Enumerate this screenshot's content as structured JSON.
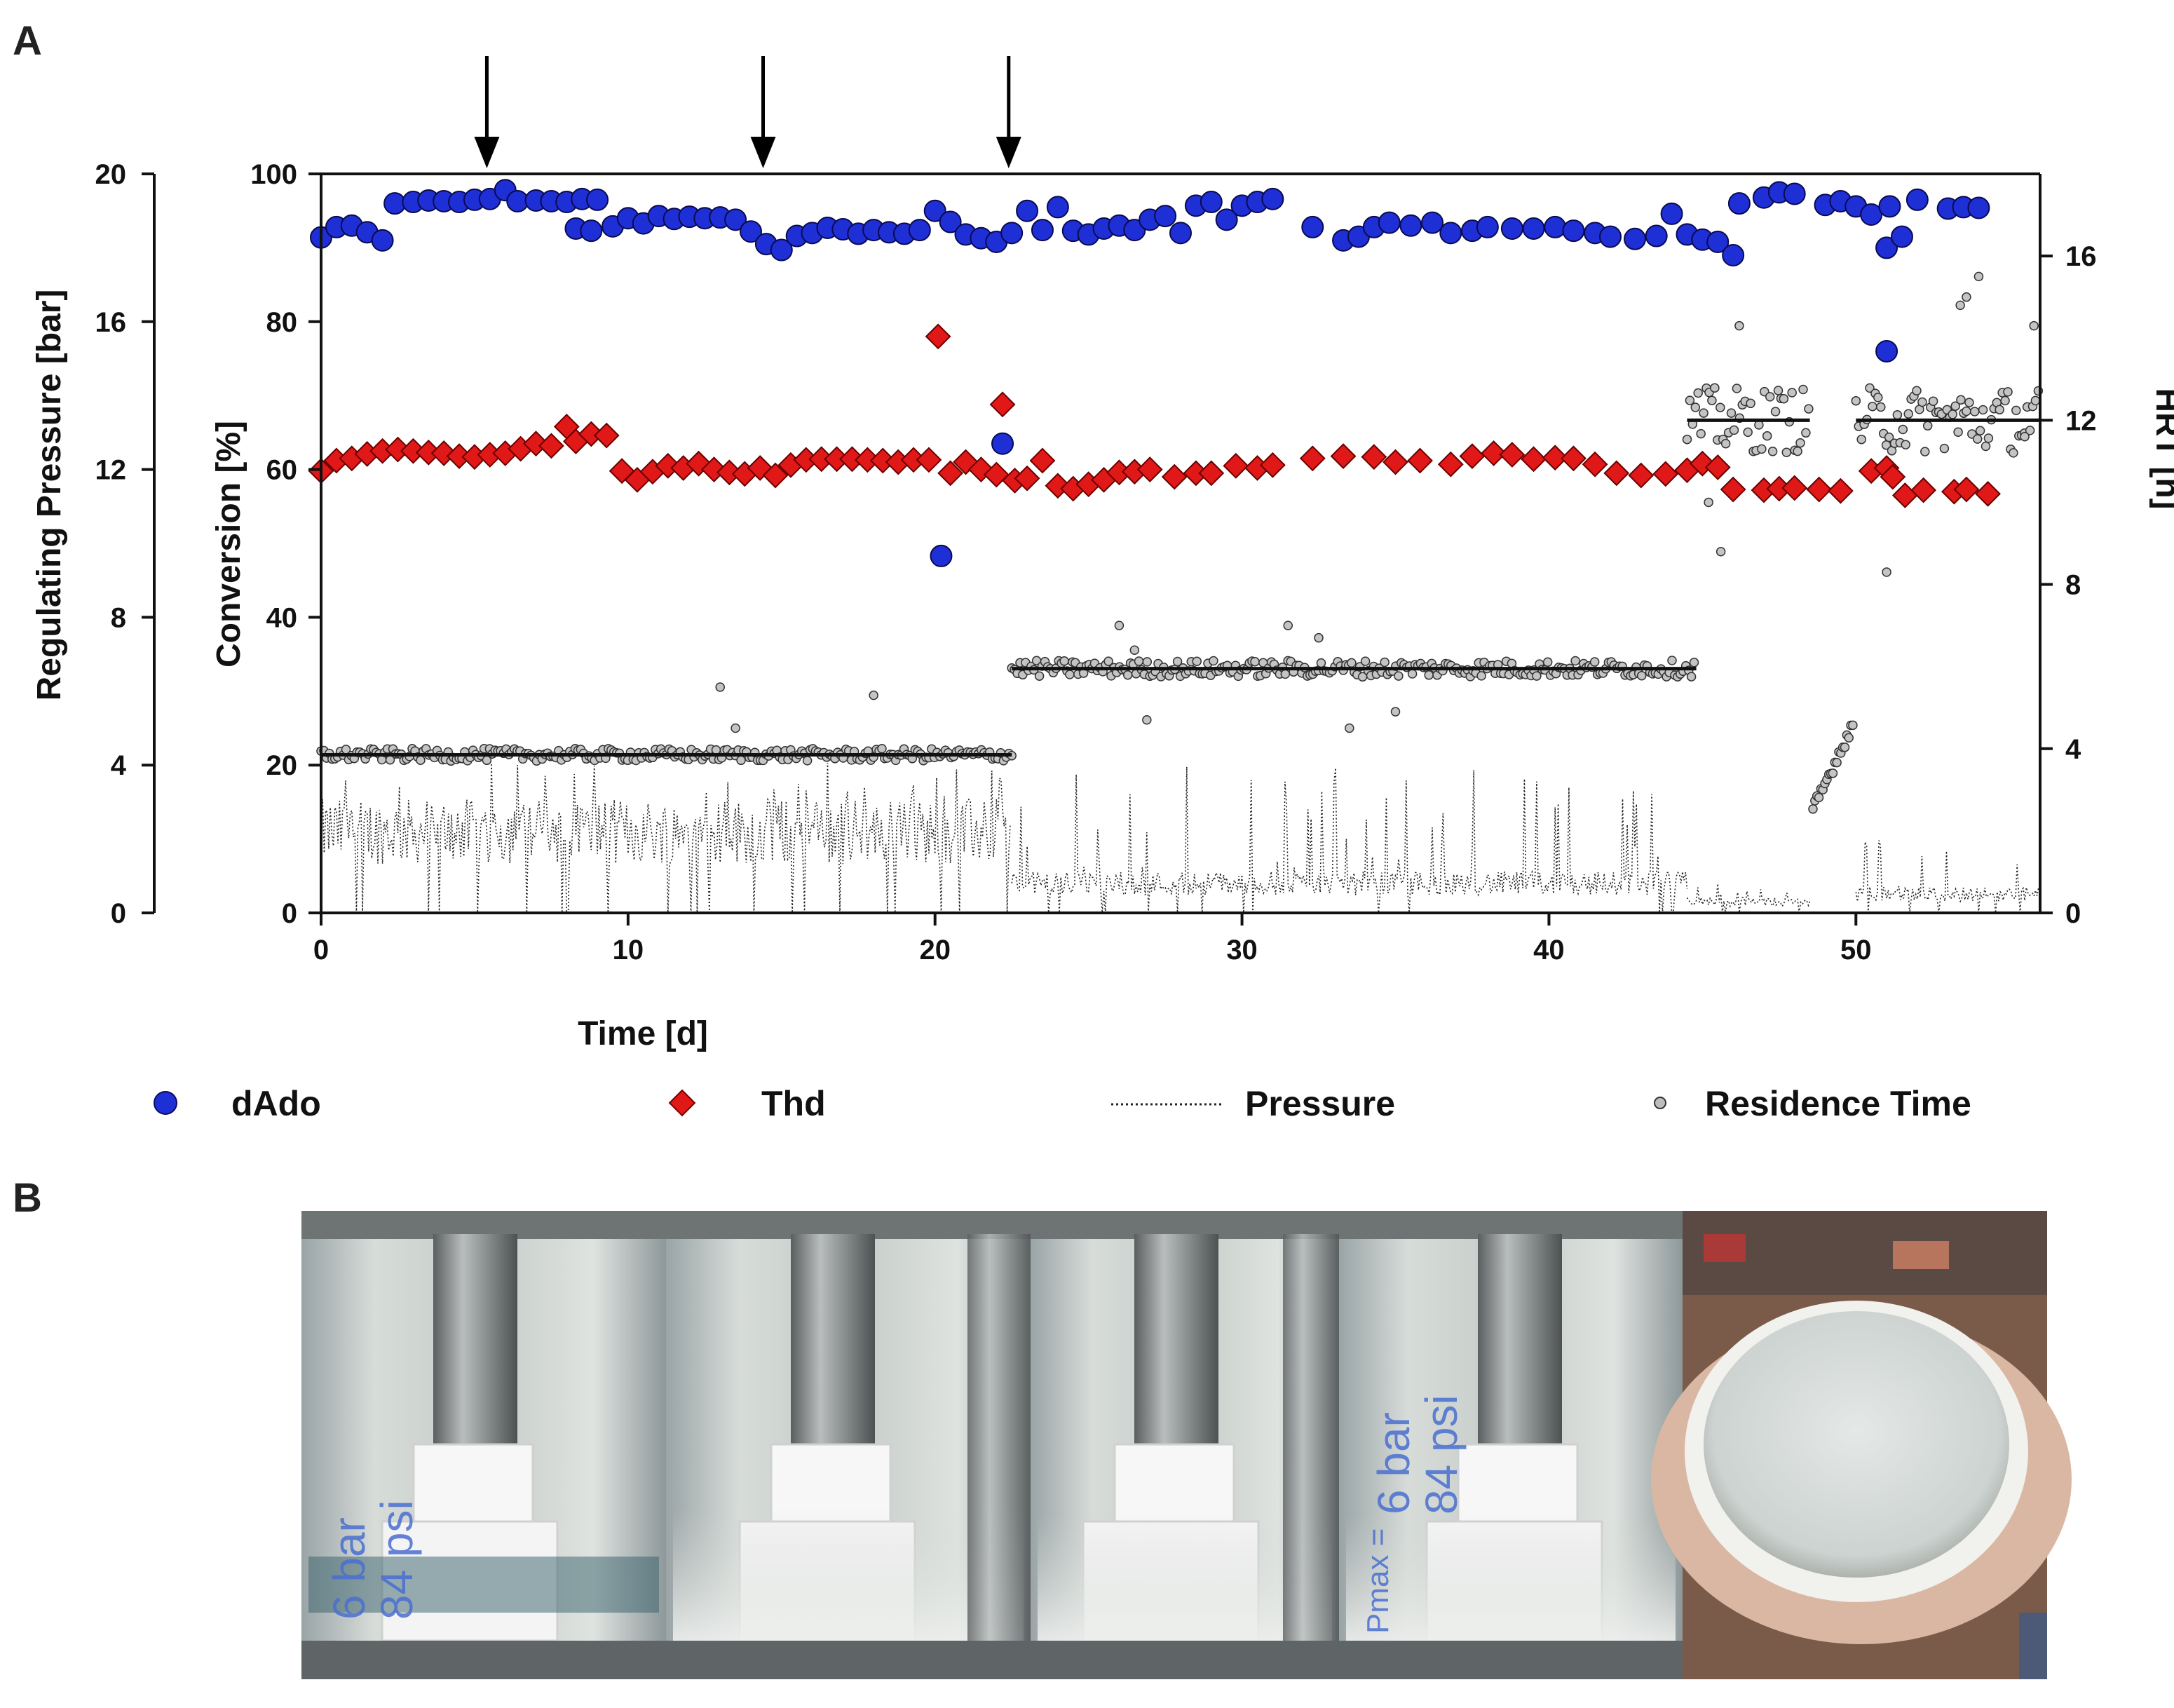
{
  "panels": {
    "a": "A",
    "b": "B"
  },
  "chart_data": {
    "type": "scatter",
    "xlabel": "Time [d]",
    "ylabel_left_outer": "Regulating Pressure [bar]",
    "ylabel_left_inner": "Conversion [%]",
    "ylabel_right": "HRT [h]",
    "xlim": [
      0,
      56
    ],
    "ylim_conversion": [
      0,
      100
    ],
    "ylim_pressure": [
      0,
      20
    ],
    "ylim_hrt": [
      0,
      18
    ],
    "x_ticks": [
      "0",
      "10",
      "20",
      "30",
      "40",
      "50"
    ],
    "conversion_ticks": [
      "0",
      "20",
      "40",
      "60",
      "80",
      "100"
    ],
    "pressure_ticks": [
      "0",
      "4",
      "8",
      "12",
      "16",
      "20"
    ],
    "hrt_ticks": [
      "0",
      "4",
      "8",
      "12",
      "16"
    ],
    "arrows_at_day": [
      5.4,
      14.4,
      22.4
    ],
    "legend": [
      "dAdo",
      "Thd",
      "Pressure",
      "Residence Time"
    ],
    "colors": {
      "dAdo": "#1f2fd6",
      "Thd": "#e01818",
      "pressure": "#222222",
      "residence": "#bdbdbd"
    },
    "series": [
      {
        "name": "dAdo",
        "marker": "circle",
        "points": [
          [
            0.0,
            91.4
          ],
          [
            0.5,
            92.8
          ],
          [
            1.0,
            93.0
          ],
          [
            1.5,
            92.1
          ],
          [
            2.0,
            91.0
          ],
          [
            2.4,
            96.0
          ],
          [
            3.0,
            96.2
          ],
          [
            3.5,
            96.4
          ],
          [
            4.0,
            96.3
          ],
          [
            4.5,
            96.2
          ],
          [
            5.0,
            96.5
          ],
          [
            5.5,
            96.6
          ],
          [
            6.0,
            97.8
          ],
          [
            6.4,
            96.3
          ],
          [
            7.0,
            96.4
          ],
          [
            7.5,
            96.3
          ],
          [
            8.0,
            96.2
          ],
          [
            8.5,
            96.6
          ],
          [
            9.0,
            96.5
          ],
          [
            8.3,
            92.6
          ],
          [
            8.8,
            92.3
          ],
          [
            9.5,
            92.9
          ],
          [
            10.0,
            94.0
          ],
          [
            10.5,
            93.3
          ],
          [
            11.0,
            94.3
          ],
          [
            11.5,
            93.9
          ],
          [
            12.0,
            94.2
          ],
          [
            12.5,
            94.0
          ],
          [
            13.0,
            94.1
          ],
          [
            13.5,
            93.8
          ],
          [
            14.0,
            92.2
          ],
          [
            14.5,
            90.5
          ],
          [
            15.0,
            89.7
          ],
          [
            15.5,
            91.6
          ],
          [
            16.0,
            92.0
          ],
          [
            16.5,
            92.7
          ],
          [
            17.0,
            92.5
          ],
          [
            17.5,
            91.9
          ],
          [
            18.0,
            92.4
          ],
          [
            18.5,
            92.1
          ],
          [
            19.0,
            91.9
          ],
          [
            19.5,
            92.4
          ],
          [
            20.0,
            95.0
          ],
          [
            20.2,
            48.3
          ],
          [
            20.5,
            93.5
          ],
          [
            21.0,
            91.8
          ],
          [
            21.5,
            91.3
          ],
          [
            22.0,
            90.8
          ],
          [
            22.2,
            63.5
          ],
          [
            22.5,
            92.0
          ],
          [
            23.0,
            95.0
          ],
          [
            23.5,
            92.4
          ],
          [
            24.0,
            95.5
          ],
          [
            24.5,
            92.3
          ],
          [
            25.0,
            91.8
          ],
          [
            25.5,
            92.6
          ],
          [
            26.0,
            93.0
          ],
          [
            26.5,
            92.4
          ],
          [
            27.0,
            93.8
          ],
          [
            27.5,
            94.3
          ],
          [
            28.0,
            92.0
          ],
          [
            28.5,
            95.7
          ],
          [
            29.0,
            96.2
          ],
          [
            29.5,
            93.8
          ],
          [
            30.0,
            95.7
          ],
          [
            30.5,
            96.2
          ],
          [
            31.0,
            96.6
          ],
          [
            32.3,
            92.8
          ],
          [
            33.3,
            91.0
          ],
          [
            33.8,
            91.5
          ],
          [
            34.3,
            92.8
          ],
          [
            34.8,
            93.4
          ],
          [
            35.5,
            93.0
          ],
          [
            36.2,
            93.4
          ],
          [
            36.8,
            92.0
          ],
          [
            37.5,
            92.3
          ],
          [
            38.0,
            92.8
          ],
          [
            38.8,
            92.6
          ],
          [
            39.5,
            92.6
          ],
          [
            40.2,
            92.8
          ],
          [
            40.8,
            92.3
          ],
          [
            41.5,
            92.0
          ],
          [
            42.0,
            91.5
          ],
          [
            42.8,
            91.2
          ],
          [
            43.5,
            91.6
          ],
          [
            44.0,
            94.6
          ],
          [
            44.5,
            91.8
          ],
          [
            45.0,
            91.1
          ],
          [
            45.5,
            90.8
          ],
          [
            46.0,
            89.0
          ],
          [
            46.2,
            96.0
          ],
          [
            47.0,
            96.8
          ],
          [
            47.5,
            97.5
          ],
          [
            48.0,
            97.3
          ],
          [
            49.0,
            95.8
          ],
          [
            49.5,
            96.3
          ],
          [
            50.0,
            95.6
          ],
          [
            50.5,
            94.5
          ],
          [
            51.0,
            76.0
          ],
          [
            51.0,
            90.0
          ],
          [
            51.1,
            95.6
          ],
          [
            51.5,
            91.5
          ],
          [
            52.0,
            96.5
          ],
          [
            53.0,
            95.3
          ],
          [
            53.5,
            95.5
          ],
          [
            54.0,
            95.4
          ]
        ]
      },
      {
        "name": "Thd",
        "marker": "diamond",
        "points": [
          [
            0.0,
            59.8
          ],
          [
            0.5,
            61.2
          ],
          [
            1.0,
            61.5
          ],
          [
            1.5,
            62.1
          ],
          [
            2.0,
            62.5
          ],
          [
            2.5,
            62.7
          ],
          [
            3.0,
            62.5
          ],
          [
            3.5,
            62.3
          ],
          [
            4.0,
            62.2
          ],
          [
            4.5,
            61.8
          ],
          [
            5.0,
            61.7
          ],
          [
            5.5,
            62.0
          ],
          [
            6.0,
            62.2
          ],
          [
            6.5,
            62.8
          ],
          [
            7.0,
            63.5
          ],
          [
            7.5,
            63.2
          ],
          [
            8.0,
            65.8
          ],
          [
            8.3,
            63.8
          ],
          [
            8.8,
            64.8
          ],
          [
            9.3,
            64.6
          ],
          [
            9.8,
            59.8
          ],
          [
            10.3,
            58.6
          ],
          [
            10.8,
            59.7
          ],
          [
            11.3,
            60.5
          ],
          [
            11.8,
            60.2
          ],
          [
            12.3,
            60.8
          ],
          [
            12.8,
            60.0
          ],
          [
            13.3,
            59.6
          ],
          [
            13.8,
            59.4
          ],
          [
            14.3,
            60.2
          ],
          [
            14.8,
            59.2
          ],
          [
            15.3,
            60.6
          ],
          [
            15.8,
            61.3
          ],
          [
            16.3,
            61.4
          ],
          [
            16.8,
            61.4
          ],
          [
            17.3,
            61.4
          ],
          [
            17.8,
            61.3
          ],
          [
            18.3,
            61.2
          ],
          [
            18.8,
            61.0
          ],
          [
            19.3,
            61.3
          ],
          [
            19.8,
            61.3
          ],
          [
            20.1,
            78.0
          ],
          [
            20.5,
            59.5
          ],
          [
            21.0,
            61.0
          ],
          [
            21.5,
            60.0
          ],
          [
            22.0,
            59.3
          ],
          [
            22.2,
            68.8
          ],
          [
            22.6,
            58.5
          ],
          [
            23.0,
            58.8
          ],
          [
            23.5,
            61.2
          ],
          [
            24.0,
            57.8
          ],
          [
            24.5,
            57.4
          ],
          [
            25.0,
            58.0
          ],
          [
            25.5,
            58.6
          ],
          [
            26.0,
            59.6
          ],
          [
            26.5,
            59.7
          ],
          [
            27.0,
            60.0
          ],
          [
            27.8,
            59.0
          ],
          [
            28.5,
            59.5
          ],
          [
            29.0,
            59.5
          ],
          [
            29.8,
            60.5
          ],
          [
            30.5,
            60.2
          ],
          [
            31.0,
            60.6
          ],
          [
            32.3,
            61.5
          ],
          [
            33.3,
            61.8
          ],
          [
            34.3,
            61.7
          ],
          [
            35.0,
            61.0
          ],
          [
            35.8,
            61.2
          ],
          [
            36.8,
            60.7
          ],
          [
            37.5,
            61.8
          ],
          [
            38.2,
            62.2
          ],
          [
            38.8,
            62.0
          ],
          [
            39.5,
            61.4
          ],
          [
            40.2,
            61.6
          ],
          [
            40.8,
            61.5
          ],
          [
            41.5,
            60.7
          ],
          [
            42.2,
            59.5
          ],
          [
            43.0,
            59.2
          ],
          [
            43.8,
            59.4
          ],
          [
            44.5,
            59.9
          ],
          [
            45.0,
            60.8
          ],
          [
            45.5,
            60.3
          ],
          [
            46.0,
            57.3
          ],
          [
            47.0,
            57.2
          ],
          [
            47.5,
            57.4
          ],
          [
            48.0,
            57.5
          ],
          [
            48.8,
            57.3
          ],
          [
            49.5,
            57.1
          ],
          [
            50.5,
            59.8
          ],
          [
            51.0,
            60.2
          ],
          [
            51.2,
            59.0
          ],
          [
            51.6,
            56.5
          ],
          [
            52.2,
            57.2
          ],
          [
            53.2,
            57.0
          ],
          [
            53.6,
            57.3
          ],
          [
            54.3,
            56.7
          ]
        ]
      },
      {
        "name": "Residence Time",
        "marker": "small-circle",
        "segments": [
          {
            "x_start": 0.0,
            "x_end": 22.5,
            "mean": 3.85,
            "spread": 0.15
          },
          {
            "x_start": 22.5,
            "x_end": 44.8,
            "mean": 5.95,
            "spread": 0.2
          },
          {
            "x_start": 44.5,
            "x_end": 48.5,
            "mean": 12.0,
            "spread": 0.8
          },
          {
            "x_start": 50.0,
            "x_end": 56.0,
            "mean": 12.0,
            "spread": 0.8
          }
        ],
        "ramp": {
          "x_start": 48.6,
          "x_end": 49.9,
          "y_start": 2.5,
          "y_end": 4.6
        },
        "outliers": [
          [
            13.0,
            5.5
          ],
          [
            18.0,
            5.3
          ],
          [
            13.5,
            4.5
          ],
          [
            26.0,
            7.0
          ],
          [
            26.5,
            6.4
          ],
          [
            26.9,
            4.7
          ],
          [
            31.5,
            7.0
          ],
          [
            32.5,
            6.7
          ],
          [
            33.5,
            4.5
          ],
          [
            35.0,
            4.9
          ],
          [
            45.2,
            10.0
          ],
          [
            45.6,
            8.8
          ],
          [
            46.2,
            14.3
          ],
          [
            51.0,
            8.3
          ],
          [
            53.4,
            14.8
          ],
          [
            53.6,
            15.0
          ],
          [
            54.0,
            15.5
          ],
          [
            55.8,
            14.3
          ],
          [
            55.5,
            11.6
          ]
        ]
      },
      {
        "name": "Pressure",
        "marker": "dotted-line",
        "segments": [
          {
            "x_start": 0.0,
            "x_end": 22.5,
            "baseline": 2.2,
            "spike_max": 4.2
          },
          {
            "x_start": 22.5,
            "x_end": 44.5,
            "baseline": 0.8,
            "spike_max": 4.0
          },
          {
            "x_start": 44.5,
            "x_end": 48.5,
            "baseline": 0.3,
            "spike_max": 0.8
          },
          {
            "x_start": 50.0,
            "x_end": 56.0,
            "baseline": 0.5,
            "spike_max": 2.2
          }
        ]
      }
    ]
  },
  "photo": {
    "label_1_line1": "6 bar",
    "label_1_line2": "84 psi",
    "label_2_line1": "6 bar",
    "label_2_line2": "84 psi",
    "label_sub": "Pmax ="
  }
}
